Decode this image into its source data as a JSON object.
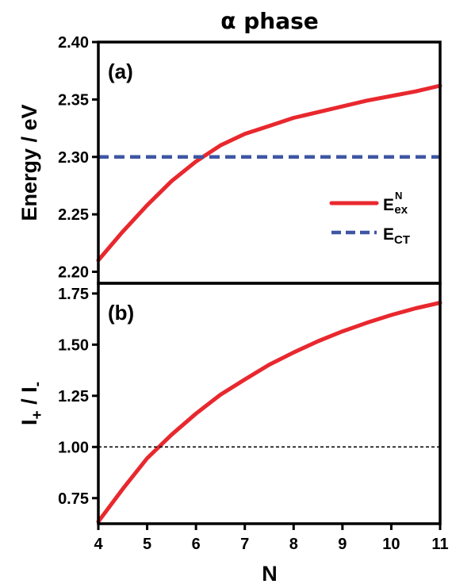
{
  "figure": {
    "title": "α phase",
    "xlabel": "N"
  },
  "chart_data": [
    {
      "type": "line",
      "panel_label": "(a)",
      "ylabel": "Energy / eV",
      "xlim": [
        4,
        11
      ],
      "ylim": [
        2.19,
        2.4
      ],
      "xticks": [
        4,
        5,
        6,
        7,
        8,
        9,
        10,
        11
      ],
      "yticks": [
        "2.20",
        "2.25",
        "2.30",
        "2.35",
        "2.40"
      ],
      "legend_position": "right",
      "series": [
        {
          "name": "E",
          "name_sup": "N",
          "name_sub": "ex",
          "color": "#e8282e",
          "style": "solid",
          "x": [
            4.0,
            4.5,
            5.0,
            5.5,
            6.0,
            6.5,
            7.0,
            7.5,
            8.0,
            8.5,
            9.0,
            9.5,
            10.0,
            10.5,
            11.0
          ],
          "y": [
            2.21,
            2.235,
            2.258,
            2.279,
            2.296,
            2.31,
            2.32,
            2.327,
            2.334,
            2.339,
            2.344,
            2.349,
            2.353,
            2.357,
            2.362
          ]
        },
        {
          "name": "E",
          "name_sub": "CT",
          "color": "#3e56a4",
          "style": "dashed",
          "x": [
            4,
            11
          ],
          "y": [
            2.3,
            2.3
          ]
        }
      ]
    },
    {
      "type": "line",
      "panel_label": "(b)",
      "ylabel": "I+ / I-",
      "ylabel_main": "I",
      "ylabel_sub1": "+",
      "ylabel_mid": " / I",
      "ylabel_sub2": "-",
      "xlim": [
        4,
        11
      ],
      "ylim": [
        0.625,
        1.8
      ],
      "xticks": [
        4,
        5,
        6,
        7,
        8,
        9,
        10,
        11
      ],
      "yticks": [
        "0.75",
        "1.00",
        "1.25",
        "1.50",
        "1.75"
      ],
      "series": [
        {
          "color": "#e8282e",
          "style": "solid",
          "x": [
            4.0,
            4.5,
            5.0,
            5.5,
            6.0,
            6.5,
            7.0,
            7.5,
            8.0,
            8.5,
            9.0,
            9.5,
            10.0,
            10.5,
            11.0
          ],
          "y": [
            0.635,
            0.795,
            0.945,
            1.06,
            1.163,
            1.255,
            1.33,
            1.402,
            1.462,
            1.517,
            1.565,
            1.607,
            1.645,
            1.678,
            1.705
          ]
        },
        {
          "color": "#000000",
          "style": "dotted",
          "x": [
            4,
            11
          ],
          "y": [
            1.0,
            1.0
          ]
        }
      ]
    }
  ]
}
